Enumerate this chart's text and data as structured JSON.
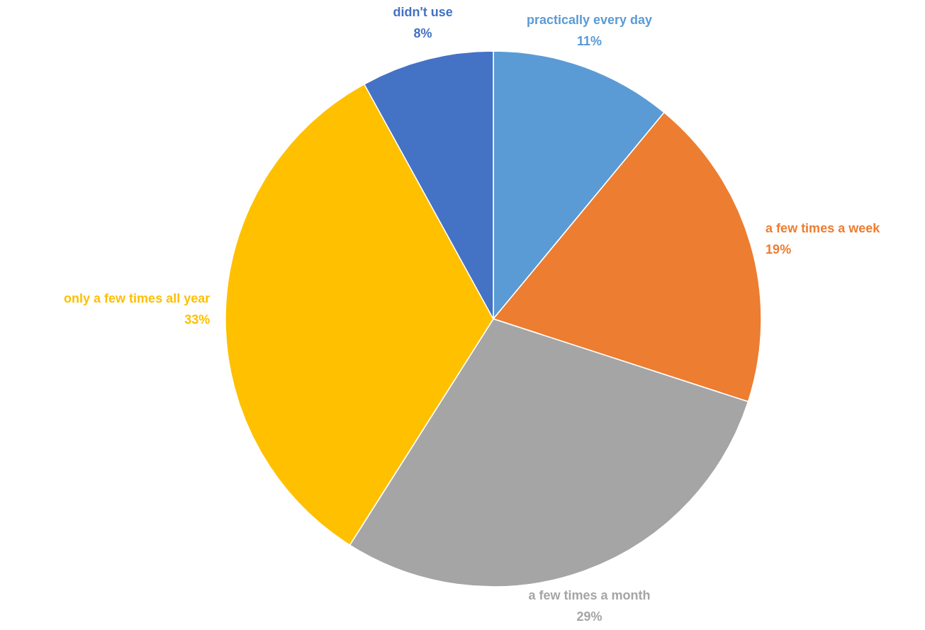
{
  "chart_data": {
    "type": "pie",
    "categories": [
      "practically every day",
      "a few times a week",
      "a few times a month",
      "only a few times all year",
      "didn't use"
    ],
    "values": [
      11,
      19,
      29,
      33,
      8
    ],
    "colors": [
      "#5b9bd5",
      "#ed7d31",
      "#a5a5a5",
      "#ffc000",
      "#4472c4"
    ],
    "value_labels": [
      "11%",
      "19%",
      "29%",
      "33%",
      "8%"
    ]
  }
}
